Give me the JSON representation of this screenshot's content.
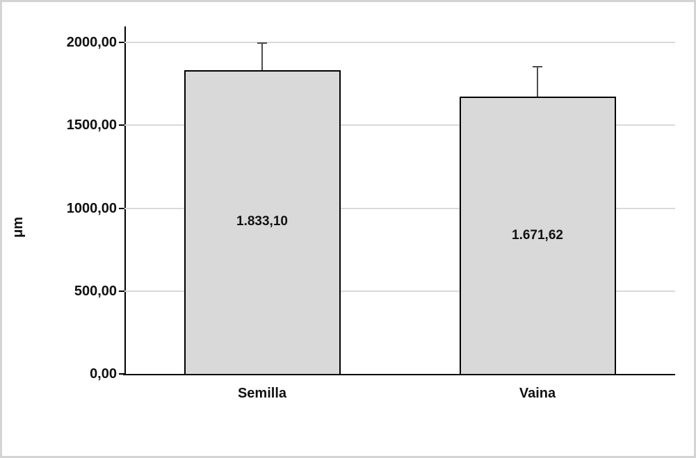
{
  "chart_data": {
    "type": "bar",
    "title": "",
    "xlabel": "",
    "ylabel": "μm",
    "categories": [
      "Semilla",
      "Vaina"
    ],
    "values": [
      1833.1,
      1671.62
    ],
    "data_labels": [
      "1.833,10",
      "1.671,62"
    ],
    "errors_plus": [
      163,
      182
    ],
    "ylim": [
      0,
      2000
    ],
    "yticks": [
      0,
      500,
      1000,
      1500,
      2000
    ],
    "ytick_labels": [
      "0,00",
      "500,00",
      "1000,00",
      "1500,00",
      "2000,00"
    ],
    "grid": true,
    "legend": "none",
    "bar_fill_color": "#d9d9d9",
    "bar_border_color": "#000000",
    "error_bar_color": "#4d4d4d",
    "gridline_color": "#d9d9d9",
    "axis_color": "#000000"
  }
}
